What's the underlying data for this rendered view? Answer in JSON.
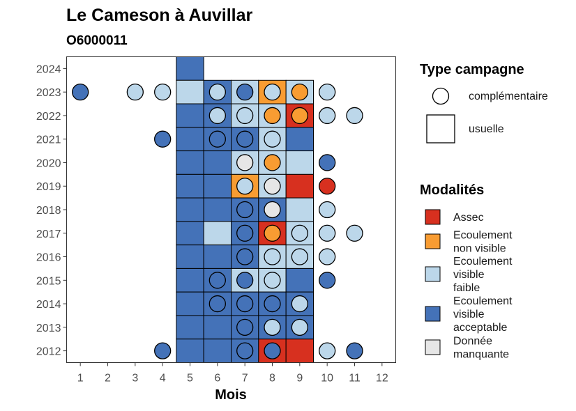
{
  "chart_data": {
    "type": "heatmap",
    "title": "Le Cameson à Auvillar",
    "subtitle": "O6000011",
    "xlabel": "Mois",
    "ylabel": "",
    "x_ticks": [
      "1",
      "2",
      "3",
      "4",
      "5",
      "6",
      "7",
      "8",
      "9",
      "10",
      "11",
      "12"
    ],
    "y_ticks": [
      "2012",
      "2013",
      "2014",
      "2015",
      "2016",
      "2017",
      "2018",
      "2019",
      "2020",
      "2021",
      "2022",
      "2023",
      "2024"
    ],
    "xlim": [
      0.5,
      12.5
    ],
    "ylim": [
      2011.5,
      2024.5
    ],
    "colors": {
      "assec": "#d7301f",
      "ecoulement_non_visible": "#f89c32",
      "ecoulement_visible_faible": "#bcd7ea",
      "ecoulement_visible_acceptable": "#4472b8",
      "donnee_manquante": "#e6e6e6"
    },
    "legend_type": {
      "title": "Type campagne",
      "items": [
        {
          "key": "complementaire",
          "label": "complémentaire",
          "shape": "circle"
        },
        {
          "key": "usuelle",
          "label": "usuelle",
          "shape": "square"
        }
      ]
    },
    "legend_modalites": {
      "title": "Modalités",
      "items": [
        {
          "key": "assec",
          "lines": [
            "Assec"
          ]
        },
        {
          "key": "ecoulement_non_visible",
          "lines": [
            "Ecoulement",
            "non visible"
          ]
        },
        {
          "key": "ecoulement_visible_faible",
          "lines": [
            "Ecoulement",
            "visible",
            "faible"
          ]
        },
        {
          "key": "ecoulement_visible_acceptable",
          "lines": [
            "Ecoulement",
            "visible",
            "acceptable"
          ]
        },
        {
          "key": "donnee_manquante",
          "lines": [
            "Donnée",
            "manquante"
          ]
        }
      ]
    },
    "usuelle": [
      {
        "year": 2024,
        "month": 5,
        "value": "ecoulement_visible_acceptable"
      },
      {
        "year": 2023,
        "month": 5,
        "value": "ecoulement_visible_faible"
      },
      {
        "year": 2023,
        "month": 6,
        "value": "ecoulement_visible_acceptable"
      },
      {
        "year": 2023,
        "month": 7,
        "value": "ecoulement_visible_faible"
      },
      {
        "year": 2023,
        "month": 8,
        "value": "ecoulement_non_visible"
      },
      {
        "year": 2023,
        "month": 9,
        "value": "ecoulement_visible_faible"
      },
      {
        "year": 2022,
        "month": 5,
        "value": "ecoulement_visible_acceptable"
      },
      {
        "year": 2022,
        "month": 6,
        "value": "ecoulement_visible_acceptable"
      },
      {
        "year": 2022,
        "month": 7,
        "value": "ecoulement_visible_faible"
      },
      {
        "year": 2022,
        "month": 8,
        "value": "ecoulement_visible_faible"
      },
      {
        "year": 2022,
        "month": 9,
        "value": "assec"
      },
      {
        "year": 2021,
        "month": 5,
        "value": "ecoulement_visible_acceptable"
      },
      {
        "year": 2021,
        "month": 6,
        "value": "ecoulement_visible_acceptable"
      },
      {
        "year": 2021,
        "month": 7,
        "value": "ecoulement_visible_acceptable"
      },
      {
        "year": 2021,
        "month": 8,
        "value": "ecoulement_visible_faible"
      },
      {
        "year": 2021,
        "month": 9,
        "value": "ecoulement_visible_acceptable"
      },
      {
        "year": 2020,
        "month": 5,
        "value": "ecoulement_visible_acceptable"
      },
      {
        "year": 2020,
        "month": 6,
        "value": "ecoulement_visible_acceptable"
      },
      {
        "year": 2020,
        "month": 7,
        "value": "ecoulement_visible_faible"
      },
      {
        "year": 2020,
        "month": 8,
        "value": "ecoulement_visible_faible"
      },
      {
        "year": 2020,
        "month": 9,
        "value": "ecoulement_visible_faible"
      },
      {
        "year": 2019,
        "month": 5,
        "value": "ecoulement_visible_acceptable"
      },
      {
        "year": 2019,
        "month": 6,
        "value": "ecoulement_visible_acceptable"
      },
      {
        "year": 2019,
        "month": 7,
        "value": "ecoulement_non_visible"
      },
      {
        "year": 2019,
        "month": 8,
        "value": "ecoulement_visible_faible"
      },
      {
        "year": 2019,
        "month": 9,
        "value": "assec"
      },
      {
        "year": 2018,
        "month": 5,
        "value": "ecoulement_visible_acceptable"
      },
      {
        "year": 2018,
        "month": 6,
        "value": "ecoulement_visible_acceptable"
      },
      {
        "year": 2018,
        "month": 7,
        "value": "ecoulement_visible_acceptable"
      },
      {
        "year": 2018,
        "month": 8,
        "value": "ecoulement_visible_acceptable"
      },
      {
        "year": 2018,
        "month": 9,
        "value": "ecoulement_visible_faible"
      },
      {
        "year": 2017,
        "month": 5,
        "value": "ecoulement_visible_acceptable"
      },
      {
        "year": 2017,
        "month": 6,
        "value": "ecoulement_visible_faible"
      },
      {
        "year": 2017,
        "month": 7,
        "value": "ecoulement_visible_acceptable"
      },
      {
        "year": 2017,
        "month": 8,
        "value": "assec"
      },
      {
        "year": 2017,
        "month": 9,
        "value": "ecoulement_visible_faible"
      },
      {
        "year": 2016,
        "month": 5,
        "value": "ecoulement_visible_acceptable"
      },
      {
        "year": 2016,
        "month": 6,
        "value": "ecoulement_visible_acceptable"
      },
      {
        "year": 2016,
        "month": 7,
        "value": "ecoulement_visible_acceptable"
      },
      {
        "year": 2016,
        "month": 8,
        "value": "ecoulement_visible_faible"
      },
      {
        "year": 2016,
        "month": 9,
        "value": "ecoulement_visible_faible"
      },
      {
        "year": 2015,
        "month": 5,
        "value": "ecoulement_visible_acceptable"
      },
      {
        "year": 2015,
        "month": 6,
        "value": "ecoulement_visible_acceptable"
      },
      {
        "year": 2015,
        "month": 7,
        "value": "ecoulement_visible_faible"
      },
      {
        "year": 2015,
        "month": 8,
        "value": "ecoulement_visible_faible"
      },
      {
        "year": 2015,
        "month": 9,
        "value": "ecoulement_visible_acceptable"
      },
      {
        "year": 2014,
        "month": 5,
        "value": "ecoulement_visible_acceptable"
      },
      {
        "year": 2014,
        "month": 6,
        "value": "ecoulement_visible_acceptable"
      },
      {
        "year": 2014,
        "month": 7,
        "value": "ecoulement_visible_acceptable"
      },
      {
        "year": 2014,
        "month": 8,
        "value": "ecoulement_visible_acceptable"
      },
      {
        "year": 2014,
        "month": 9,
        "value": "ecoulement_visible_acceptable"
      },
      {
        "year": 2013,
        "month": 5,
        "value": "ecoulement_visible_acceptable"
      },
      {
        "year": 2013,
        "month": 6,
        "value": "ecoulement_visible_acceptable"
      },
      {
        "year": 2013,
        "month": 7,
        "value": "ecoulement_visible_acceptable"
      },
      {
        "year": 2013,
        "month": 8,
        "value": "ecoulement_visible_acceptable"
      },
      {
        "year": 2013,
        "month": 9,
        "value": "ecoulement_visible_acceptable"
      },
      {
        "year": 2012,
        "month": 5,
        "value": "ecoulement_visible_acceptable"
      },
      {
        "year": 2012,
        "month": 6,
        "value": "ecoulement_visible_acceptable"
      },
      {
        "year": 2012,
        "month": 7,
        "value": "ecoulement_visible_acceptable"
      },
      {
        "year": 2012,
        "month": 8,
        "value": "assec"
      },
      {
        "year": 2012,
        "month": 9,
        "value": "assec"
      }
    ],
    "complementaire": [
      {
        "year": 2023,
        "month": 1,
        "value": "ecoulement_visible_acceptable"
      },
      {
        "year": 2023,
        "month": 3,
        "value": "ecoulement_visible_faible"
      },
      {
        "year": 2023,
        "month": 4,
        "value": "ecoulement_visible_faible"
      },
      {
        "year": 2023,
        "month": 6,
        "value": "ecoulement_visible_faible"
      },
      {
        "year": 2023,
        "month": 7,
        "value": "ecoulement_visible_acceptable"
      },
      {
        "year": 2023,
        "month": 8,
        "value": "ecoulement_visible_faible"
      },
      {
        "year": 2023,
        "month": 9,
        "value": "ecoulement_non_visible"
      },
      {
        "year": 2023,
        "month": 10,
        "value": "ecoulement_visible_faible"
      },
      {
        "year": 2022,
        "month": 6,
        "value": "ecoulement_visible_faible"
      },
      {
        "year": 2022,
        "month": 7,
        "value": "ecoulement_visible_faible"
      },
      {
        "year": 2022,
        "month": 8,
        "value": "ecoulement_non_visible"
      },
      {
        "year": 2022,
        "month": 9,
        "value": "ecoulement_non_visible"
      },
      {
        "year": 2022,
        "month": 10,
        "value": "ecoulement_visible_faible"
      },
      {
        "year": 2022,
        "month": 11,
        "value": "ecoulement_visible_faible"
      },
      {
        "year": 2021,
        "month": 4,
        "value": "ecoulement_visible_acceptable"
      },
      {
        "year": 2021,
        "month": 6,
        "value": "ecoulement_visible_acceptable"
      },
      {
        "year": 2021,
        "month": 7,
        "value": "ecoulement_visible_acceptable"
      },
      {
        "year": 2021,
        "month": 8,
        "value": "ecoulement_visible_faible"
      },
      {
        "year": 2020,
        "month": 7,
        "value": "donnee_manquante"
      },
      {
        "year": 2020,
        "month": 8,
        "value": "ecoulement_non_visible"
      },
      {
        "year": 2020,
        "month": 10,
        "value": "ecoulement_visible_acceptable"
      },
      {
        "year": 2019,
        "month": 7,
        "value": "ecoulement_visible_faible"
      },
      {
        "year": 2019,
        "month": 8,
        "value": "donnee_manquante"
      },
      {
        "year": 2019,
        "month": 10,
        "value": "assec"
      },
      {
        "year": 2018,
        "month": 7,
        "value": "ecoulement_visible_acceptable"
      },
      {
        "year": 2018,
        "month": 8,
        "value": "donnee_manquante"
      },
      {
        "year": 2018,
        "month": 10,
        "value": "ecoulement_visible_faible"
      },
      {
        "year": 2017,
        "month": 7,
        "value": "ecoulement_visible_acceptable"
      },
      {
        "year": 2017,
        "month": 8,
        "value": "ecoulement_non_visible"
      },
      {
        "year": 2017,
        "month": 9,
        "value": "ecoulement_visible_faible"
      },
      {
        "year": 2017,
        "month": 10,
        "value": "ecoulement_visible_faible"
      },
      {
        "year": 2017,
        "month": 11,
        "value": "ecoulement_visible_faible"
      },
      {
        "year": 2016,
        "month": 7,
        "value": "ecoulement_visible_acceptable"
      },
      {
        "year": 2016,
        "month": 8,
        "value": "ecoulement_visible_faible"
      },
      {
        "year": 2016,
        "month": 9,
        "value": "ecoulement_visible_faible"
      },
      {
        "year": 2016,
        "month": 10,
        "value": "ecoulement_visible_faible"
      },
      {
        "year": 2015,
        "month": 6,
        "value": "ecoulement_visible_acceptable"
      },
      {
        "year": 2015,
        "month": 7,
        "value": "ecoulement_visible_acceptable"
      },
      {
        "year": 2015,
        "month": 8,
        "value": "ecoulement_visible_faible"
      },
      {
        "year": 2015,
        "month": 10,
        "value": "ecoulement_visible_acceptable"
      },
      {
        "year": 2014,
        "month": 6,
        "value": "ecoulement_visible_acceptable"
      },
      {
        "year": 2014,
        "month": 7,
        "value": "ecoulement_visible_acceptable"
      },
      {
        "year": 2014,
        "month": 8,
        "value": "ecoulement_visible_acceptable"
      },
      {
        "year": 2014,
        "month": 9,
        "value": "ecoulement_visible_faible"
      },
      {
        "year": 2013,
        "month": 7,
        "value": "ecoulement_visible_acceptable"
      },
      {
        "year": 2013,
        "month": 8,
        "value": "ecoulement_visible_faible"
      },
      {
        "year": 2013,
        "month": 9,
        "value": "ecoulement_visible_faible"
      },
      {
        "year": 2012,
        "month": 4,
        "value": "ecoulement_visible_acceptable"
      },
      {
        "year": 2012,
        "month": 7,
        "value": "ecoulement_visible_acceptable"
      },
      {
        "year": 2012,
        "month": 8,
        "value": "ecoulement_visible_acceptable"
      },
      {
        "year": 2012,
        "month": 10,
        "value": "ecoulement_visible_faible"
      },
      {
        "year": 2012,
        "month": 11,
        "value": "ecoulement_visible_acceptable"
      }
    ]
  }
}
